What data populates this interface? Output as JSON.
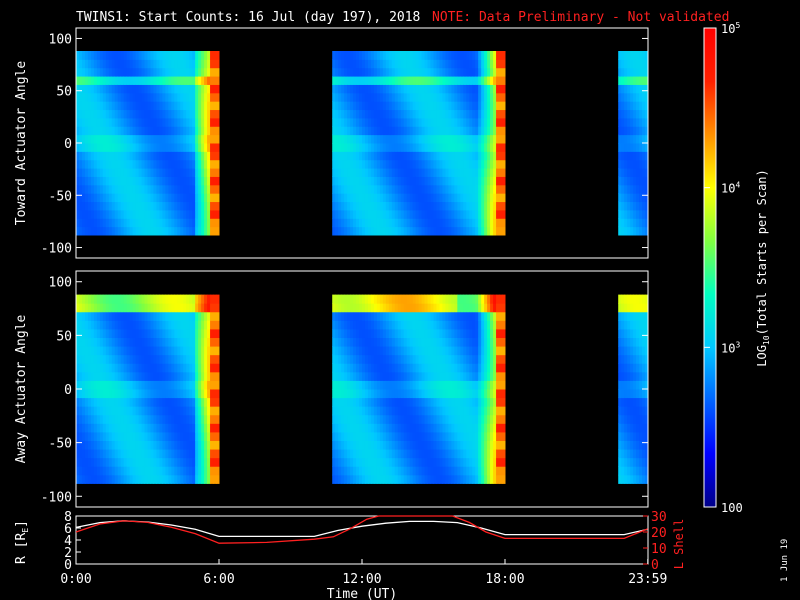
{
  "chart_data": {
    "type": "heatmap",
    "title": "TWINS1: Start Counts: 16 Jul (day 197), 2018",
    "note": "NOTE: Data Preliminary - Not validated",
    "date_stamp": "1 Jun 19",
    "x_ticks": [
      "0:00",
      "6:00",
      "12:00",
      "18:00",
      "23:59"
    ],
    "xlabel": "Time (UT)",
    "time_range_hours": [
      0,
      24
    ],
    "data_gaps_hours": [
      [
        6.0,
        10.7
      ],
      [
        18.0,
        22.8
      ]
    ],
    "panels": [
      {
        "id": "toward",
        "ylabel": "Toward Actuator Angle",
        "ylim": [
          -110,
          110
        ],
        "y_ticks": [
          "100",
          "50",
          "0",
          "-50",
          "-100"
        ],
        "angle_range": [
          -88,
          88
        ],
        "bright_band_deg": [
          55,
          65
        ]
      },
      {
        "id": "away",
        "ylabel": "Away Actuator Angle",
        "ylim": [
          -110,
          110
        ],
        "y_ticks": [
          "100",
          "50",
          "0",
          "-50",
          "-100"
        ],
        "angle_range": [
          -88,
          88
        ],
        "bright_band_deg": [
          75,
          88
        ]
      }
    ],
    "orbit": {
      "ylabel_left": "R [R",
      "ylabel_left_sub": "E",
      "ylabel_left_tail": "]",
      "ylabel_right": "L Shell",
      "left_ticks": [
        "8",
        "6",
        "4",
        "2",
        "0"
      ],
      "left_range": [
        0,
        8
      ],
      "right_ticks": [
        "30",
        "20",
        "10",
        "0"
      ],
      "right_range": [
        0,
        30
      ],
      "series": [
        {
          "name": "R",
          "color": "#ffffff",
          "x": [
            0,
            1,
            2,
            3,
            4,
            5,
            6,
            8,
            10,
            11,
            12,
            13,
            14,
            15,
            16,
            17,
            18,
            20,
            22,
            23,
            23.99
          ],
          "y": [
            6.1,
            6.9,
            7.2,
            7.0,
            6.5,
            5.8,
            4.6,
            4.6,
            4.6,
            5.6,
            6.3,
            6.8,
            7.1,
            7.1,
            6.9,
            6.0,
            4.9,
            4.9,
            4.9,
            4.9,
            5.8
          ]
        },
        {
          "name": "L Shell",
          "color": "#ff2020",
          "x": [
            0,
            1,
            2,
            3,
            4,
            5,
            6,
            8,
            10,
            10.8,
            11.5,
            12.2,
            12.7,
            13.0,
            15.0,
            15.8,
            16.5,
            17.2,
            18,
            20,
            22,
            23,
            23.99
          ],
          "y": [
            20,
            25,
            27,
            26,
            23,
            19,
            13,
            13.5,
            15.5,
            17,
            22,
            28,
            32,
            33,
            33,
            31,
            26,
            20,
            16,
            16,
            16,
            16,
            22
          ]
        }
      ]
    },
    "colorbar": {
      "label": "LOG",
      "label_sub": "10",
      "label_tail": "(Total Starts per Scan)",
      "ticks": [
        {
          "base": "10",
          "exp": "5"
        },
        {
          "base": "10",
          "exp": "4"
        },
        {
          "base": "10",
          "exp": "3"
        },
        {
          "base": "100",
          "exp": ""
        }
      ],
      "range_log": [
        2,
        5
      ],
      "colors": [
        "#000088",
        "#0000ff",
        "#0064ff",
        "#00c8ff",
        "#00ffc0",
        "#80ff40",
        "#ffff00",
        "#ff9000",
        "#ff2000",
        "#ff0000"
      ]
    }
  }
}
